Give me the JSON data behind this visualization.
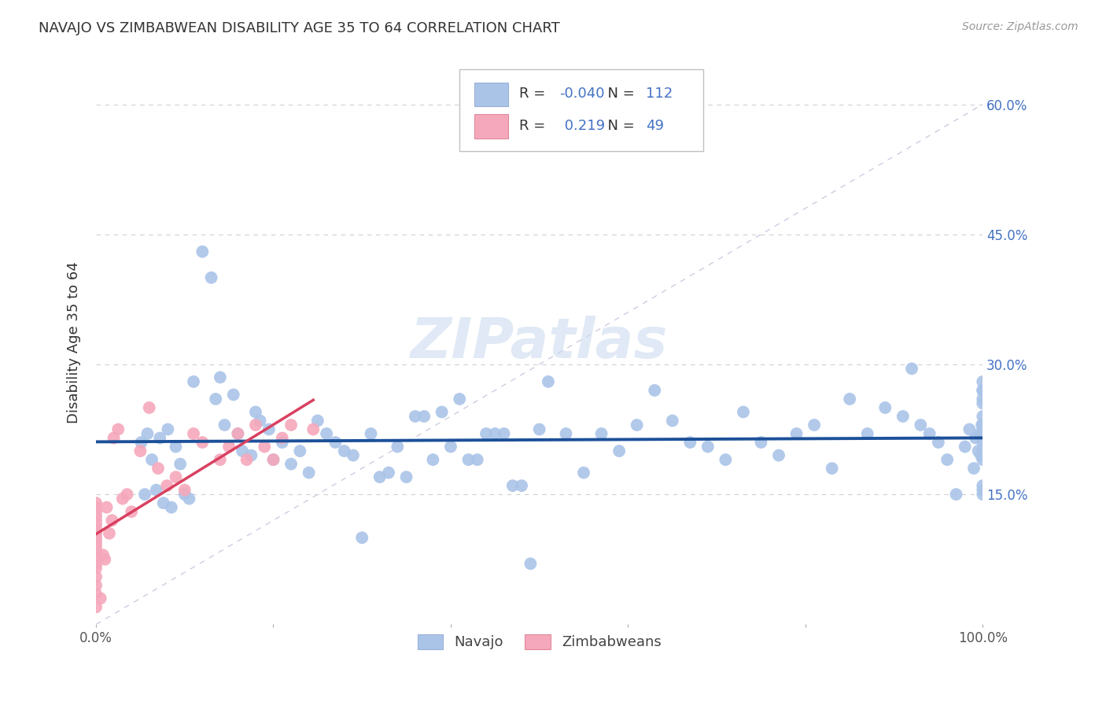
{
  "title": "NAVAJO VS ZIMBABWEAN DISABILITY AGE 35 TO 64 CORRELATION CHART",
  "source": "Source: ZipAtlas.com",
  "ylabel": "Disability Age 35 to 64",
  "xlim": [
    0,
    100
  ],
  "ylim": [
    0,
    65
  ],
  "yticks": [
    0,
    15,
    30,
    45,
    60
  ],
  "yticklabels": [
    "",
    "15.0%",
    "30.0%",
    "45.0%",
    "60.0%"
  ],
  "navajo_R": -0.04,
  "navajo_N": 112,
  "zimbabwe_R": 0.219,
  "zimbabwe_N": 49,
  "navajo_color": "#aac4e8",
  "zimbabwe_color": "#f5a8bb",
  "navajo_line_color": "#1c5099",
  "zimbabwe_line_color": "#d94060",
  "diagonal_color": "#d0cce0",
  "navajo_x": [
    5.1,
    5.5,
    5.8,
    6.3,
    6.8,
    7.2,
    7.6,
    8.1,
    9.0,
    10.0,
    11.0,
    12.0,
    13.0,
    14.0,
    14.5,
    15.5,
    16.5,
    17.5,
    18.5,
    19.5,
    21.0,
    23.0,
    25.0,
    27.0,
    29.0,
    31.0,
    33.0,
    35.0,
    37.0,
    39.0,
    41.0,
    43.0,
    45.0,
    47.0,
    49.0,
    51.0,
    55.0,
    59.0,
    63.0,
    67.0,
    71.0,
    75.0,
    79.0,
    83.0,
    87.0,
    91.0,
    93.0,
    95.0,
    97.0,
    98.5,
    99.0,
    99.5,
    99.8,
    100.0,
    100.0,
    100.0,
    100.0,
    100.0,
    100.0,
    100.0,
    100.0,
    100.0,
    100.0,
    100.0,
    100.0,
    100.0,
    8.5,
    9.5,
    10.5,
    13.5,
    16.0,
    18.0,
    20.0,
    22.0,
    24.0,
    26.0,
    28.0,
    30.0,
    32.0,
    34.0,
    36.0,
    38.0,
    40.0,
    42.0,
    44.0,
    46.0,
    48.0,
    50.0,
    53.0,
    57.0,
    61.0,
    65.0,
    69.0,
    73.0,
    77.0,
    81.0,
    85.0,
    89.0,
    92.0,
    94.0,
    96.0,
    98.0,
    99.2,
    99.7,
    99.9,
    100.0,
    100.0,
    100.0,
    100.0,
    100.0,
    100.0,
    100.0
  ],
  "navajo_y": [
    21.0,
    15.0,
    22.0,
    19.0,
    15.5,
    21.5,
    14.0,
    22.5,
    20.5,
    15.0,
    28.0,
    43.0,
    40.0,
    28.5,
    23.0,
    26.5,
    20.0,
    19.5,
    23.5,
    22.5,
    21.0,
    20.0,
    23.5,
    21.0,
    19.5,
    22.0,
    17.5,
    17.0,
    24.0,
    24.5,
    26.0,
    19.0,
    22.0,
    16.0,
    7.0,
    28.0,
    17.5,
    20.0,
    27.0,
    21.0,
    19.0,
    21.0,
    22.0,
    18.0,
    22.0,
    24.0,
    23.0,
    21.0,
    15.0,
    22.5,
    18.0,
    20.0,
    19.5,
    27.0,
    24.0,
    16.0,
    25.5,
    15.0,
    26.0,
    28.0,
    19.0,
    21.5,
    22.0,
    20.0,
    19.5,
    23.0,
    13.5,
    18.5,
    14.5,
    26.0,
    22.0,
    24.5,
    19.0,
    18.5,
    17.5,
    22.0,
    20.0,
    10.0,
    17.0,
    20.5,
    24.0,
    19.0,
    20.5,
    19.0,
    22.0,
    22.0,
    16.0,
    22.5,
    22.0,
    22.0,
    23.0,
    23.5,
    20.5,
    24.5,
    19.5,
    23.0,
    26.0,
    25.0,
    29.5,
    22.0,
    19.0,
    20.5,
    21.5,
    22.0,
    23.0,
    15.5,
    27.0,
    21.0,
    21.5,
    19.5,
    20.0,
    22.0
  ],
  "zimbabwe_x": [
    0.0,
    0.0,
    0.0,
    0.0,
    0.0,
    0.0,
    0.0,
    0.0,
    0.0,
    0.0,
    0.0,
    0.0,
    0.0,
    0.0,
    0.0,
    0.0,
    0.0,
    0.0,
    0.0,
    0.0,
    0.5,
    0.8,
    1.0,
    1.2,
    1.5,
    1.8,
    2.0,
    2.5,
    3.0,
    3.5,
    4.0,
    5.0,
    6.0,
    7.0,
    8.0,
    9.0,
    10.0,
    11.0,
    12.0,
    14.0,
    15.0,
    16.0,
    17.0,
    18.0,
    19.0,
    20.0,
    21.0,
    22.0,
    24.5
  ],
  "zimbabwe_y": [
    2.0,
    3.5,
    4.5,
    5.5,
    6.5,
    7.0,
    7.5,
    8.0,
    8.5,
    9.0,
    9.5,
    10.0,
    10.5,
    11.0,
    11.5,
    12.0,
    12.5,
    13.0,
    13.5,
    14.0,
    3.0,
    8.0,
    7.5,
    13.5,
    10.5,
    12.0,
    21.5,
    22.5,
    14.5,
    15.0,
    13.0,
    20.0,
    25.0,
    18.0,
    16.0,
    17.0,
    15.5,
    22.0,
    21.0,
    19.0,
    20.5,
    22.0,
    19.0,
    23.0,
    20.5,
    19.0,
    21.5,
    23.0,
    22.5
  ],
  "watermark": "ZIPatlas"
}
